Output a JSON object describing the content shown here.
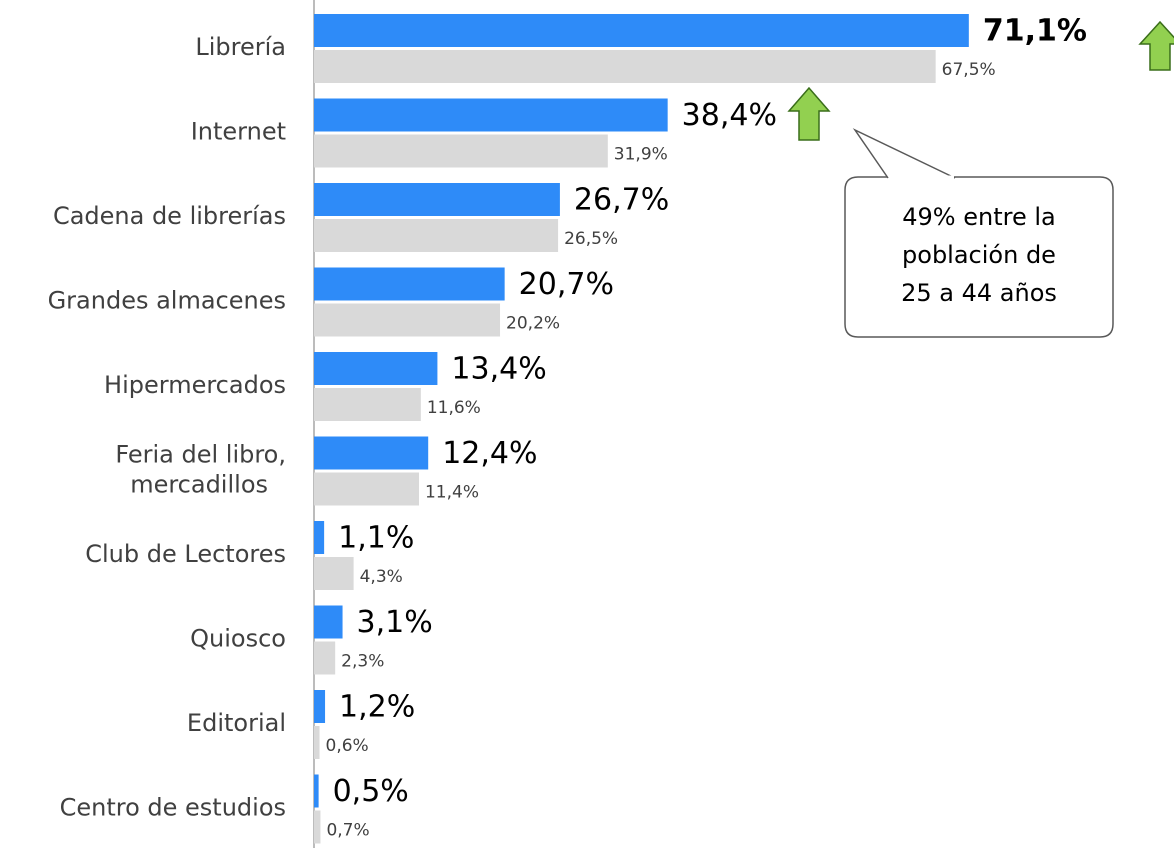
{
  "chart_data": {
    "type": "bar",
    "orientation": "horizontal",
    "categories": [
      "Librería",
      "Internet",
      "Cadena de librerías",
      "Grandes almacenes",
      "Hipermercados",
      "Feria del libro,\nmercadillos",
      "Club de Lectores",
      "Quiosco",
      "Editorial",
      "Centro de estudios"
    ],
    "series": [
      {
        "color": "#2e8bf8",
        "values": [
          71.1,
          38.4,
          26.7,
          20.7,
          13.4,
          12.4,
          1.1,
          3.1,
          1.2,
          0.5
        ],
        "value_labels": [
          "71,1%",
          "38,4%",
          "26,7%",
          "20,7%",
          "13,4%",
          "12,4%",
          "1,1%",
          "3,1%",
          "1,2%",
          "0,5%"
        ]
      },
      {
        "color": "#d9d9d9",
        "values": [
          67.5,
          31.9,
          26.5,
          20.2,
          11.6,
          11.4,
          4.3,
          2.3,
          0.6,
          0.7
        ],
        "value_labels": [
          "67,5%",
          "31,9%",
          "26,5%",
          "20,2%",
          "11,6%",
          "11,4%",
          "4,3%",
          "2,3%",
          "0,6%",
          "0,7%"
        ]
      }
    ],
    "annotation": {
      "lines": [
        "49% entre la",
        "población de",
        "25 a 44 años"
      ]
    }
  }
}
